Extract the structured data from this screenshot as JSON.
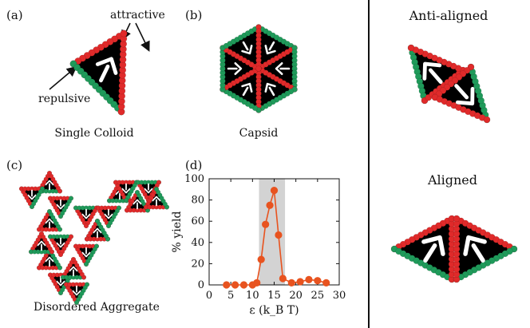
{
  "panels": {
    "a": {
      "label": "(a)",
      "caption": "Single Colloid",
      "annotation_attractive": "attractive",
      "annotation_repulsive": "repulsive"
    },
    "b": {
      "label": "(b)",
      "caption": "Capsid"
    },
    "c": {
      "label": "(c)",
      "caption": "Disordered Aggregate"
    },
    "d": {
      "label": "(d)"
    },
    "right": {
      "top_title": "Anti-aligned",
      "bottom_title": "Aligned"
    }
  },
  "colors": {
    "attractive": "#e02a2a",
    "repulsive": "#1f9a5a",
    "core": "#000000",
    "arrow": "#ffffff",
    "line": "#e8531f",
    "band": "#d3d3d3"
  },
  "chart_data": {
    "type": "line",
    "title": "",
    "xlabel": "ε (k_B T)",
    "ylabel": "% yield",
    "xlim": [
      0,
      30
    ],
    "ylim": [
      0,
      100
    ],
    "xticks": [
      0,
      5,
      10,
      15,
      20,
      25,
      30
    ],
    "yticks": [
      0,
      20,
      40,
      60,
      80,
      100
    ],
    "shaded_band": [
      11.5,
      17.5
    ],
    "grid": false,
    "series": [
      {
        "x": [
          4,
          6,
          8,
          10,
          11,
          12,
          13,
          14,
          15,
          16,
          17,
          19,
          21,
          23,
          25,
          27
        ],
        "y": [
          0,
          0,
          0,
          0,
          2,
          24,
          57,
          75,
          89,
          47,
          6,
          2,
          3,
          5,
          4,
          2
        ]
      }
    ]
  }
}
